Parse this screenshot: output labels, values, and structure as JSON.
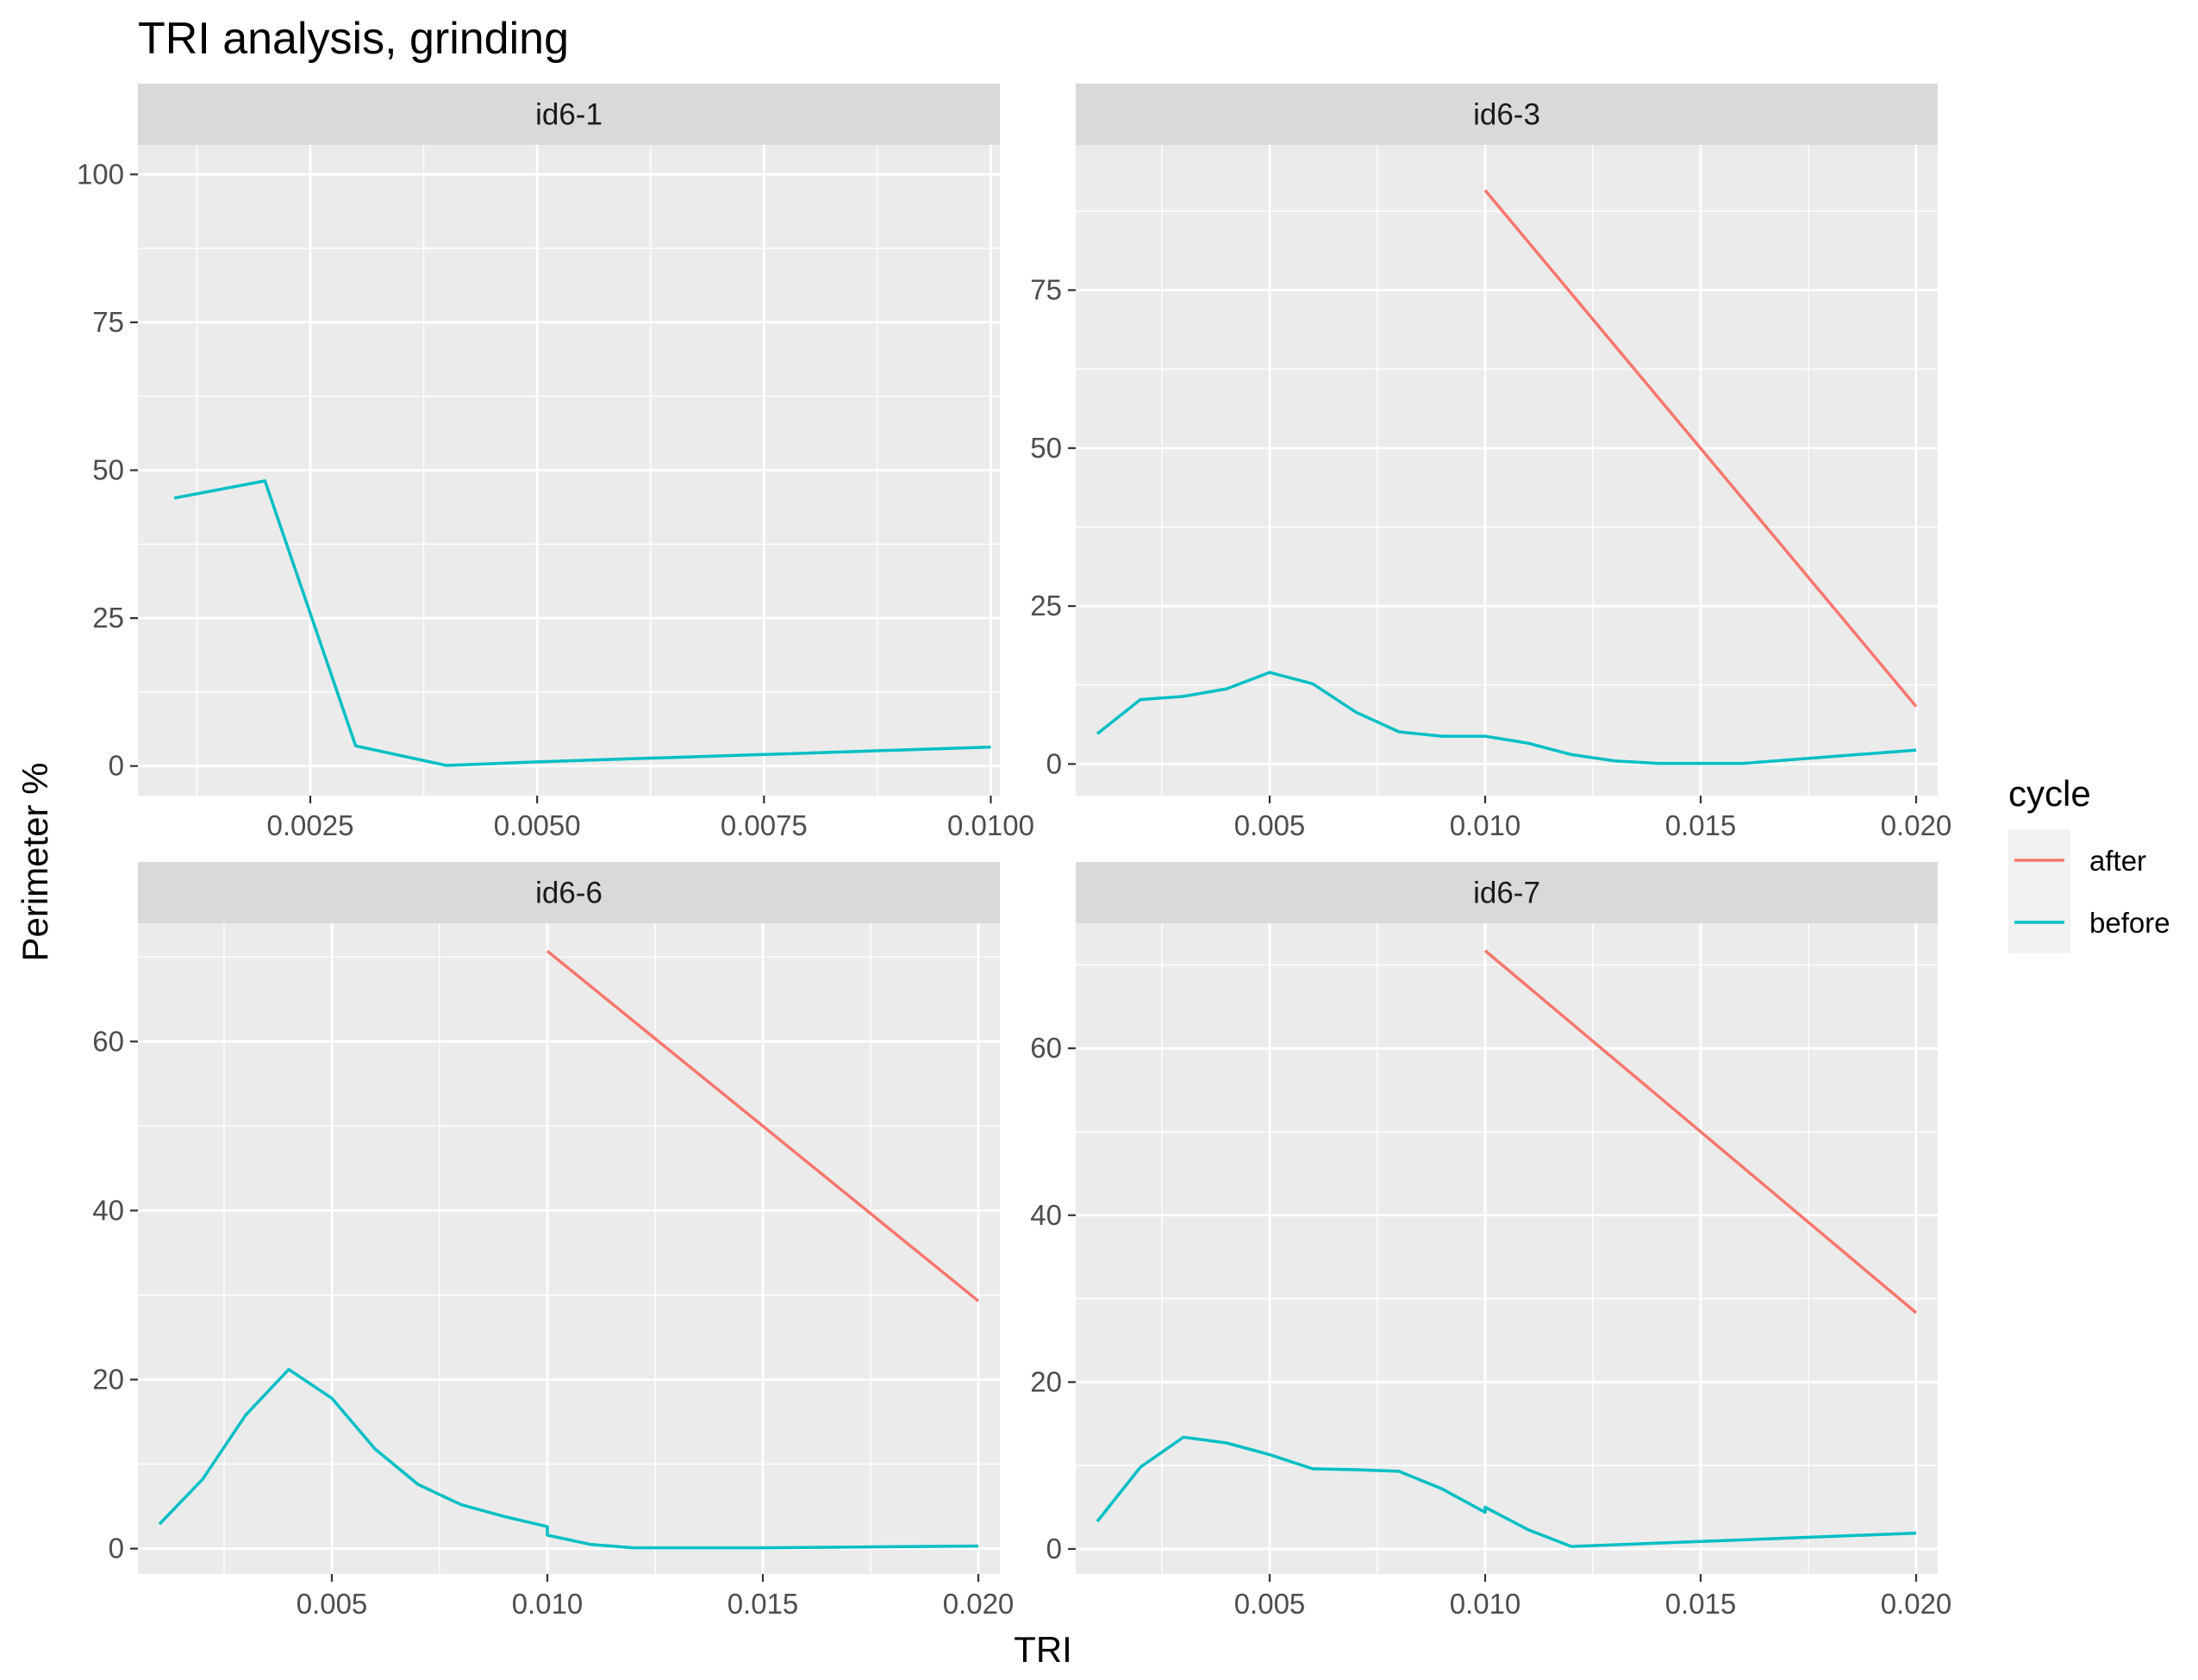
{
  "chart_data": {
    "type": "line",
    "title": "TRI analysis, grinding",
    "xlabel": "TRI",
    "ylabel": "Perimeter %",
    "grid": true,
    "legend": {
      "title": "cycle",
      "position": "right",
      "entries": [
        {
          "name": "after",
          "color": "#F8766D"
        },
        {
          "name": "before",
          "color": "#00BFC4"
        }
      ]
    },
    "panels": [
      {
        "strip": "id6-1",
        "xlim": [
          0.0006,
          0.0101
        ],
        "ylim": [
          -5,
          105
        ],
        "x_ticks": [
          0.0025,
          0.005,
          0.0075,
          0.01
        ],
        "x_tick_labels": [
          "0.0025",
          "0.0050",
          "0.0075",
          "0.0100"
        ],
        "y_ticks": [
          0,
          25,
          50,
          75,
          100
        ],
        "y_tick_labels": [
          "0",
          "25",
          "50",
          "75",
          "100"
        ],
        "series": [
          {
            "name": "before",
            "color": "#00BFC4",
            "x": [
              0.001,
              0.002,
              0.003,
              0.004,
              0.005,
              0.006,
              0.007,
              0.008,
              0.009,
              0.01
            ],
            "y": [
              45.3,
              48.2,
              3.4,
              0.1,
              0.7,
              1.2,
              1.7,
              2.2,
              2.7,
              3.2
            ]
          }
        ]
      },
      {
        "strip": "id6-3",
        "xlim": [
          0.0005,
          0.0205
        ],
        "ylim": [
          -5,
          98
        ],
        "x_ticks": [
          0.005,
          0.01,
          0.015,
          0.02
        ],
        "x_tick_labels": [
          "0.005",
          "0.010",
          "0.015",
          "0.020"
        ],
        "y_ticks": [
          0,
          25,
          50,
          75
        ],
        "y_tick_labels": [
          "0",
          "25",
          "50",
          "75"
        ],
        "series": [
          {
            "name": "after",
            "color": "#F8766D",
            "x": [
              0.01,
              0.02
            ],
            "y": [
              90.8,
              9.1
            ]
          },
          {
            "name": "before",
            "color": "#00BFC4",
            "x": [
              0.001,
              0.002,
              0.003,
              0.004,
              0.005,
              0.006,
              0.007,
              0.008,
              0.009,
              0.01,
              0.011,
              0.012,
              0.013,
              0.014,
              0.016,
              0.02
            ],
            "y": [
              4.8,
              10.2,
              10.7,
              11.9,
              14.5,
              12.7,
              8.2,
              5.1,
              4.4,
              4.4,
              3.3,
              1.5,
              0.5,
              0.1,
              0.1,
              2.2
            ]
          }
        ]
      },
      {
        "strip": "id6-6",
        "xlim": [
          0.0005,
          0.0205
        ],
        "ylim": [
          -3,
          74
        ],
        "x_ticks": [
          0.005,
          0.01,
          0.015,
          0.02
        ],
        "x_tick_labels": [
          "0.005",
          "0.010",
          "0.015",
          "0.020"
        ],
        "y_ticks": [
          0,
          20,
          40,
          60
        ],
        "y_tick_labels": [
          "0",
          "20",
          "40",
          "60"
        ],
        "series": [
          {
            "name": "after",
            "color": "#F8766D",
            "x": [
              0.01,
              0.02
            ],
            "y": [
              70.7,
              29.3
            ]
          },
          {
            "name": "before",
            "color": "#00BFC4",
            "x": [
              0.001,
              0.002,
              0.003,
              0.004,
              0.005,
              0.006,
              0.007,
              0.008,
              0.009,
              0.01,
              0.01,
              0.011,
              0.012,
              0.015,
              0.0175,
              0.02
            ],
            "y": [
              2.9,
              8.2,
              15.8,
              21.2,
              17.8,
              11.8,
              7.6,
              5.2,
              3.8,
              2.6,
              1.6,
              0.5,
              0.1,
              0.1,
              0.2,
              0.3
            ]
          }
        ]
      },
      {
        "strip": "id6-7",
        "xlim": [
          0.0005,
          0.0205
        ],
        "ylim": [
          -3,
          75
        ],
        "x_ticks": [
          0.005,
          0.01,
          0.015,
          0.02
        ],
        "x_tick_labels": [
          "0.005",
          "0.010",
          "0.015",
          "0.020"
        ],
        "y_ticks": [
          0,
          20,
          40,
          60
        ],
        "y_tick_labels": [
          "0",
          "20",
          "40",
          "60"
        ],
        "series": [
          {
            "name": "after",
            "color": "#F8766D",
            "x": [
              0.01,
              0.02
            ],
            "y": [
              71.7,
              28.3
            ]
          },
          {
            "name": "before",
            "color": "#00BFC4",
            "x": [
              0.001,
              0.002,
              0.003,
              0.004,
              0.005,
              0.006,
              0.007,
              0.008,
              0.009,
              0.01,
              0.01,
              0.011,
              0.012,
              0.015,
              0.02
            ],
            "y": [
              3.3,
              9.8,
              13.4,
              12.7,
              11.3,
              9.6,
              9.5,
              9.3,
              7.2,
              4.4,
              5.0,
              2.3,
              0.3,
              0.9,
              1.9
            ]
          }
        ]
      }
    ]
  }
}
